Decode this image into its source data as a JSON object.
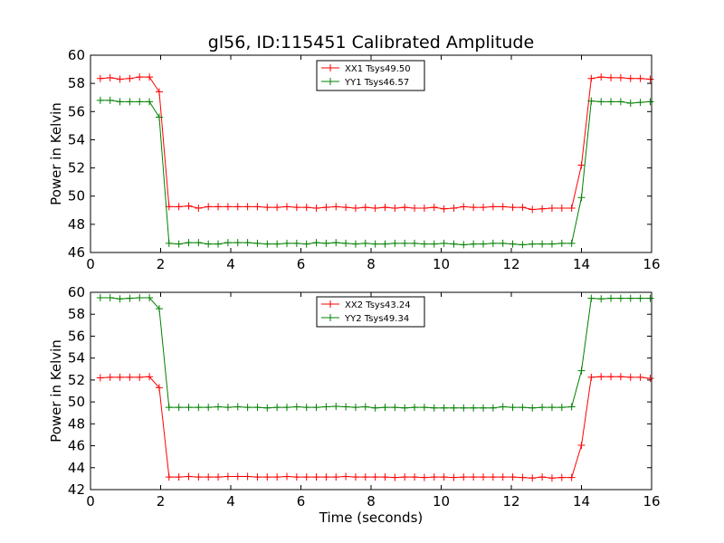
{
  "chart_data": [
    {
      "type": "line",
      "title": "gl56, ID:115451 Calibrated Amplitude",
      "xlabel": "",
      "ylabel": "Power in Kelvin",
      "xlim": [
        0,
        16
      ],
      "ylim": [
        46,
        60
      ],
      "x_ticks": [
        0,
        2,
        4,
        6,
        8,
        10,
        12,
        14,
        16
      ],
      "y_ticks": [
        46,
        48,
        50,
        52,
        54,
        56,
        58,
        60
      ],
      "legend_position": "top-center",
      "grid": false,
      "x": [
        0.28,
        0.56,
        0.84,
        1.12,
        1.4,
        1.68,
        1.96,
        2.24,
        2.52,
        2.8,
        3.08,
        3.36,
        3.64,
        3.92,
        4.2,
        4.48,
        4.76,
        5.04,
        5.32,
        5.6,
        5.88,
        6.16,
        6.44,
        6.72,
        7.0,
        7.28,
        7.56,
        7.84,
        8.12,
        8.4,
        8.68,
        8.96,
        9.24,
        9.52,
        9.8,
        10.08,
        10.36,
        10.64,
        10.92,
        11.2,
        11.48,
        11.76,
        12.04,
        12.32,
        12.6,
        12.88,
        13.16,
        13.44,
        13.72,
        14.0,
        14.28,
        14.56,
        14.84,
        15.12,
        15.4,
        15.68,
        15.96
      ],
      "series": [
        {
          "name": "XX1 Tsys49.50",
          "color": "#ff0000",
          "values": [
            58.35,
            58.4,
            58.3,
            58.35,
            58.45,
            58.45,
            57.4,
            49.25,
            49.25,
            49.3,
            49.15,
            49.25,
            49.25,
            49.25,
            49.25,
            49.25,
            49.25,
            49.2,
            49.2,
            49.25,
            49.2,
            49.2,
            49.15,
            49.2,
            49.25,
            49.2,
            49.15,
            49.2,
            49.15,
            49.2,
            49.15,
            49.2,
            49.15,
            49.15,
            49.2,
            49.1,
            49.15,
            49.25,
            49.2,
            49.2,
            49.25,
            49.25,
            49.2,
            49.2,
            49.05,
            49.1,
            49.15,
            49.15,
            49.15,
            52.2,
            58.35,
            58.45,
            58.4,
            58.4,
            58.35,
            58.35,
            58.3
          ]
        },
        {
          "name": "YY1 Tsys46.57",
          "color": "#008000",
          "values": [
            56.8,
            56.8,
            56.7,
            56.7,
            56.7,
            56.7,
            55.6,
            46.65,
            46.6,
            46.7,
            46.7,
            46.6,
            46.6,
            46.7,
            46.7,
            46.7,
            46.65,
            46.6,
            46.6,
            46.65,
            46.65,
            46.6,
            46.7,
            46.65,
            46.7,
            46.65,
            46.6,
            46.65,
            46.6,
            46.6,
            46.65,
            46.65,
            46.65,
            46.6,
            46.6,
            46.65,
            46.6,
            46.55,
            46.6,
            46.6,
            46.65,
            46.65,
            46.6,
            46.55,
            46.6,
            46.6,
            46.6,
            46.65,
            46.65,
            49.9,
            56.75,
            56.7,
            56.7,
            56.7,
            56.6,
            56.65,
            56.7
          ]
        }
      ]
    },
    {
      "type": "line",
      "title": "",
      "xlabel": "Time (seconds)",
      "ylabel": "Power in Kelvin",
      "xlim": [
        0,
        16
      ],
      "ylim": [
        42,
        60
      ],
      "x_ticks": [
        0,
        2,
        4,
        6,
        8,
        10,
        12,
        14,
        16
      ],
      "y_ticks": [
        42,
        44,
        46,
        48,
        50,
        52,
        54,
        56,
        58,
        60
      ],
      "legend_position": "top-center",
      "grid": false,
      "x": [
        0.28,
        0.56,
        0.84,
        1.12,
        1.4,
        1.68,
        1.96,
        2.24,
        2.52,
        2.8,
        3.08,
        3.36,
        3.64,
        3.92,
        4.2,
        4.48,
        4.76,
        5.04,
        5.32,
        5.6,
        5.88,
        6.16,
        6.44,
        6.72,
        7.0,
        7.28,
        7.56,
        7.84,
        8.12,
        8.4,
        8.68,
        8.96,
        9.24,
        9.52,
        9.8,
        10.08,
        10.36,
        10.64,
        10.92,
        11.2,
        11.48,
        11.76,
        12.04,
        12.32,
        12.6,
        12.88,
        13.16,
        13.44,
        13.72,
        14.0,
        14.28,
        14.56,
        14.84,
        15.12,
        15.4,
        15.68,
        15.96
      ],
      "series": [
        {
          "name": "XX2 Tsys43.24",
          "color": "#ff0000",
          "values": [
            52.2,
            52.25,
            52.25,
            52.25,
            52.25,
            52.3,
            51.3,
            43.15,
            43.15,
            43.2,
            43.15,
            43.15,
            43.15,
            43.2,
            43.2,
            43.2,
            43.15,
            43.15,
            43.15,
            43.2,
            43.15,
            43.15,
            43.15,
            43.15,
            43.15,
            43.2,
            43.15,
            43.15,
            43.15,
            43.15,
            43.1,
            43.15,
            43.15,
            43.1,
            43.15,
            43.15,
            43.1,
            43.15,
            43.15,
            43.15,
            43.15,
            43.15,
            43.15,
            43.1,
            43.05,
            43.15,
            43.05,
            43.1,
            43.1,
            46.05,
            52.25,
            52.3,
            52.3,
            52.3,
            52.25,
            52.25,
            52.15
          ]
        },
        {
          "name": "YY2 Tsys49.34",
          "color": "#008000",
          "values": [
            59.5,
            59.5,
            59.4,
            59.45,
            59.5,
            59.5,
            58.5,
            49.5,
            49.5,
            49.5,
            49.5,
            49.5,
            49.55,
            49.5,
            49.55,
            49.5,
            49.5,
            49.45,
            49.5,
            49.5,
            49.55,
            49.5,
            49.5,
            49.55,
            49.6,
            49.55,
            49.5,
            49.55,
            49.45,
            49.5,
            49.5,
            49.45,
            49.5,
            49.5,
            49.45,
            49.45,
            49.45,
            49.45,
            49.45,
            49.45,
            49.45,
            49.55,
            49.5,
            49.5,
            49.45,
            49.5,
            49.5,
            49.5,
            49.55,
            52.85,
            59.45,
            59.4,
            59.45,
            59.45,
            59.45,
            59.45,
            59.45
          ]
        }
      ]
    }
  ]
}
